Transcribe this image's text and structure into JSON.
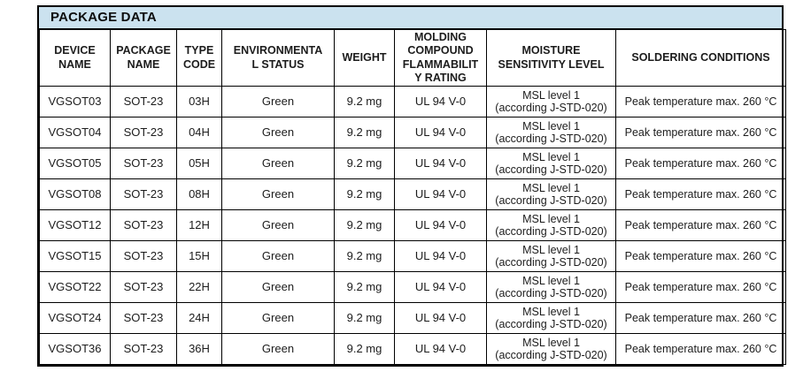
{
  "title": "PACKAGE DATA",
  "colors": {
    "title_bar_background": "#cbe2ef",
    "border": "#000000",
    "text": "#1a1a1a"
  },
  "table": {
    "headers": [
      {
        "id": "device_name",
        "label": "DEVICE\nNAME"
      },
      {
        "id": "package_name",
        "label": "PACKAGE\nNAME"
      },
      {
        "id": "type_code",
        "label": "TYPE\nCODE"
      },
      {
        "id": "environmental_status",
        "label": "ENVIRONMENTA\nL STATUS"
      },
      {
        "id": "weight",
        "label": "WEIGHT"
      },
      {
        "id": "flammability_rating",
        "label": "MOLDING\nCOMPOUND\nFLAMMABILIT\nY RATING"
      },
      {
        "id": "moisture_level",
        "label": "MOISTURE\nSENSITIVITY LEVEL"
      },
      {
        "id": "soldering",
        "label": "SOLDERING CONDITIONS"
      }
    ],
    "rows": [
      {
        "device_name": "VGSOT03",
        "package_name": "SOT-23",
        "type_code": "03H",
        "environmental_status": "Green",
        "weight": "9.2 mg",
        "flammability_rating": "UL 94 V-0",
        "moisture_level": "MSL level 1\n(according J-STD-020)",
        "soldering": "Peak temperature max. 260 °C"
      },
      {
        "device_name": "VGSOT04",
        "package_name": "SOT-23",
        "type_code": "04H",
        "environmental_status": "Green",
        "weight": "9.2 mg",
        "flammability_rating": "UL 94 V-0",
        "moisture_level": "MSL level 1\n(according J-STD-020)",
        "soldering": "Peak temperature max. 260 °C"
      },
      {
        "device_name": "VGSOT05",
        "package_name": "SOT-23",
        "type_code": "05H",
        "environmental_status": "Green",
        "weight": "9.2 mg",
        "flammability_rating": "UL 94 V-0",
        "moisture_level": "MSL level 1\n(according J-STD-020)",
        "soldering": "Peak temperature max. 260 °C"
      },
      {
        "device_name": "VGSOT08",
        "package_name": "SOT-23",
        "type_code": "08H",
        "environmental_status": "Green",
        "weight": "9.2 mg",
        "flammability_rating": "UL 94 V-0",
        "moisture_level": "MSL level 1\n(according J-STD-020)",
        "soldering": "Peak temperature max. 260 °C"
      },
      {
        "device_name": "VGSOT12",
        "package_name": "SOT-23",
        "type_code": "12H",
        "environmental_status": "Green",
        "weight": "9.2 mg",
        "flammability_rating": "UL 94 V-0",
        "moisture_level": "MSL level 1\n(according J-STD-020)",
        "soldering": "Peak temperature max. 260 °C"
      },
      {
        "device_name": "VGSOT15",
        "package_name": "SOT-23",
        "type_code": "15H",
        "environmental_status": "Green",
        "weight": "9.2 mg",
        "flammability_rating": "UL 94 V-0",
        "moisture_level": "MSL level 1\n(according J-STD-020)",
        "soldering": "Peak temperature max. 260 °C"
      },
      {
        "device_name": "VGSOT22",
        "package_name": "SOT-23",
        "type_code": "22H",
        "environmental_status": "Green",
        "weight": "9.2 mg",
        "flammability_rating": "UL 94 V-0",
        "moisture_level": "MSL level 1\n(according J-STD-020)",
        "soldering": "Peak temperature max. 260 °C"
      },
      {
        "device_name": "VGSOT24",
        "package_name": "SOT-23",
        "type_code": "24H",
        "environmental_status": "Green",
        "weight": "9.2 mg",
        "flammability_rating": "UL 94 V-0",
        "moisture_level": "MSL level 1\n(according J-STD-020)",
        "soldering": "Peak temperature max. 260 °C"
      },
      {
        "device_name": "VGSOT36",
        "package_name": "SOT-23",
        "type_code": "36H",
        "environmental_status": "Green",
        "weight": "9.2 mg",
        "flammability_rating": "UL 94 V-0",
        "moisture_level": "MSL level 1\n(according J-STD-020)",
        "soldering": "Peak temperature max. 260 °C"
      }
    ]
  }
}
